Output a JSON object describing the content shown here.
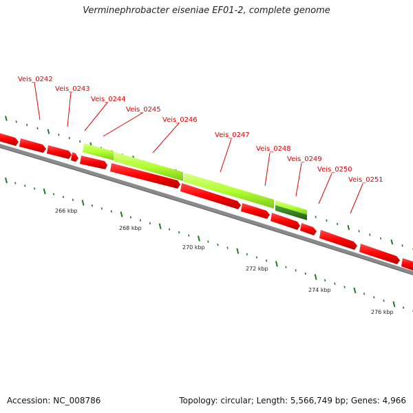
{
  "title": "Verminephrobacter eiseniae EF01-2, complete genome",
  "footer": {
    "accession": "Accession: NC_008786",
    "summary": "Topology: circular; Length: 5,566,749 bp; Genes: 4,966"
  },
  "scale_labels": [
    "266 kbp",
    "268 kbp",
    "270 kbp",
    "272 kbp",
    "274 kbp",
    "276 kbp"
  ],
  "gene_labels": [
    "Veis_0242",
    "Veis_0243",
    "Veis_0244",
    "Veis_0245",
    "Veis_0246",
    "Veis_0247",
    "Veis_0248",
    "Veis_0249",
    "Veis_0250",
    "Veis_0251"
  ],
  "colors": {
    "gene_red": "#ff0000",
    "highlight_green": "#b3ff33",
    "highlight_dark_green": "#2e7d1e",
    "backbone_gray": "#8a8a8a",
    "tick_green": "#1f7a1f",
    "label_red": "#dd0000"
  }
}
